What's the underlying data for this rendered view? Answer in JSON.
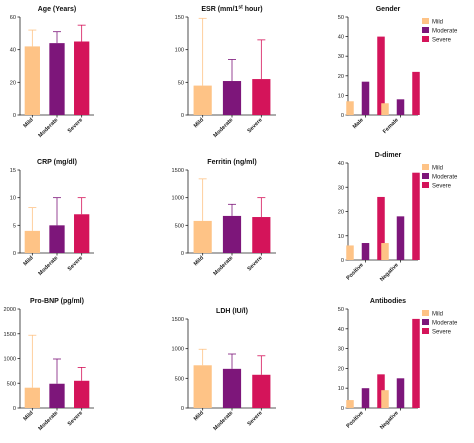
{
  "colors": {
    "mild": "#fec386",
    "moderate": "#7d167a",
    "severe": "#d4145a"
  },
  "chart_data": [
    {
      "id": "age",
      "type": "bar",
      "title": "Age (Years)",
      "categories": [
        "Mild",
        "Moderate",
        "Severe"
      ],
      "values": [
        42,
        44,
        45
      ],
      "errors": [
        52,
        51,
        55
      ],
      "ylim": [
        0,
        60
      ],
      "yticks": [
        "0",
        "20",
        "40",
        "60"
      ]
    },
    {
      "id": "esr",
      "type": "bar",
      "title": "ESR (mm/1",
      "title_sup": "st",
      "title_end": " hour)",
      "categories": [
        "Mild",
        "Moderate",
        "Severe"
      ],
      "values": [
        45,
        52,
        55
      ],
      "errors": [
        148,
        85,
        115
      ],
      "ylim": [
        0,
        150
      ],
      "yticks": [
        "0",
        "50",
        "100",
        "150"
      ]
    },
    {
      "id": "gender",
      "type": "grouped-bar",
      "title": "Gender",
      "categories": [
        "Male",
        "Female"
      ],
      "series": [
        {
          "name": "Mild",
          "values": [
            7,
            6
          ]
        },
        {
          "name": "Moderate",
          "values": [
            17,
            8
          ]
        },
        {
          "name": "Severe",
          "values": [
            40,
            22
          ]
        }
      ],
      "ylim": [
        0,
        50
      ],
      "yticks": [
        "0",
        "10",
        "20",
        "30",
        "40",
        "50"
      ],
      "legend": "top-right"
    },
    {
      "id": "crp",
      "type": "bar",
      "title": "CRP (mg/dl)",
      "categories": [
        "Mild",
        "Moderate",
        "Severe"
      ],
      "values": [
        4,
        5,
        7
      ],
      "errors": [
        8.2,
        10,
        10
      ],
      "ylim": [
        0,
        15
      ],
      "yticks": [
        "0",
        "5",
        "10",
        "15"
      ]
    },
    {
      "id": "ferritin",
      "type": "bar",
      "title": "Ferritin (ng/ml)",
      "categories": [
        "Mild",
        "Moderate",
        "Severe"
      ],
      "values": [
        580,
        670,
        650
      ],
      "errors": [
        1340,
        880,
        1000
      ],
      "ylim": [
        0,
        1500
      ],
      "yticks": [
        "0",
        "500",
        "1000",
        "1500"
      ]
    },
    {
      "id": "ddimer",
      "type": "grouped-bar",
      "title": "D-dimer",
      "categories": [
        "Positive",
        "Negative"
      ],
      "series": [
        {
          "name": "Mild",
          "values": [
            6,
            7
          ]
        },
        {
          "name": "Moderate",
          "values": [
            7,
            18
          ]
        },
        {
          "name": "Severe",
          "values": [
            26,
            36
          ]
        }
      ],
      "ylim": [
        0,
        40
      ],
      "yticks": [
        "0",
        "10",
        "20",
        "30",
        "40"
      ],
      "legend": "top-right"
    },
    {
      "id": "probnp",
      "type": "bar",
      "title": "Pro-BNP (pg/ml)",
      "categories": [
        "Mild",
        "Moderate",
        "Severe"
      ],
      "values": [
        410,
        490,
        550
      ],
      "errors": [
        1470,
        990,
        820
      ],
      "ylim": [
        0,
        2000
      ],
      "yticks": [
        "0",
        "500",
        "1000",
        "1500",
        "2000"
      ]
    },
    {
      "id": "ldh",
      "type": "bar",
      "title": "LDH (IU/l)",
      "categories": [
        "Mild",
        "Moderate",
        "Severe"
      ],
      "values": [
        720,
        660,
        560
      ],
      "errors": [
        990,
        910,
        880
      ],
      "ylim": [
        0,
        1500
      ],
      "yticks": [
        "0",
        "500",
        "1000",
        "1500"
      ]
    },
    {
      "id": "antibodies",
      "type": "grouped-bar",
      "title": "Antibodies",
      "categories": [
        "Positive",
        "Negative"
      ],
      "series": [
        {
          "name": "Mild",
          "values": [
            4,
            9
          ]
        },
        {
          "name": "Moderate",
          "values": [
            10,
            15
          ]
        },
        {
          "name": "Severe",
          "values": [
            17,
            45
          ]
        }
      ],
      "ylim": [
        0,
        50
      ],
      "yticks": [
        "0",
        "10",
        "20",
        "30",
        "40",
        "50"
      ],
      "legend": "top-right"
    }
  ]
}
